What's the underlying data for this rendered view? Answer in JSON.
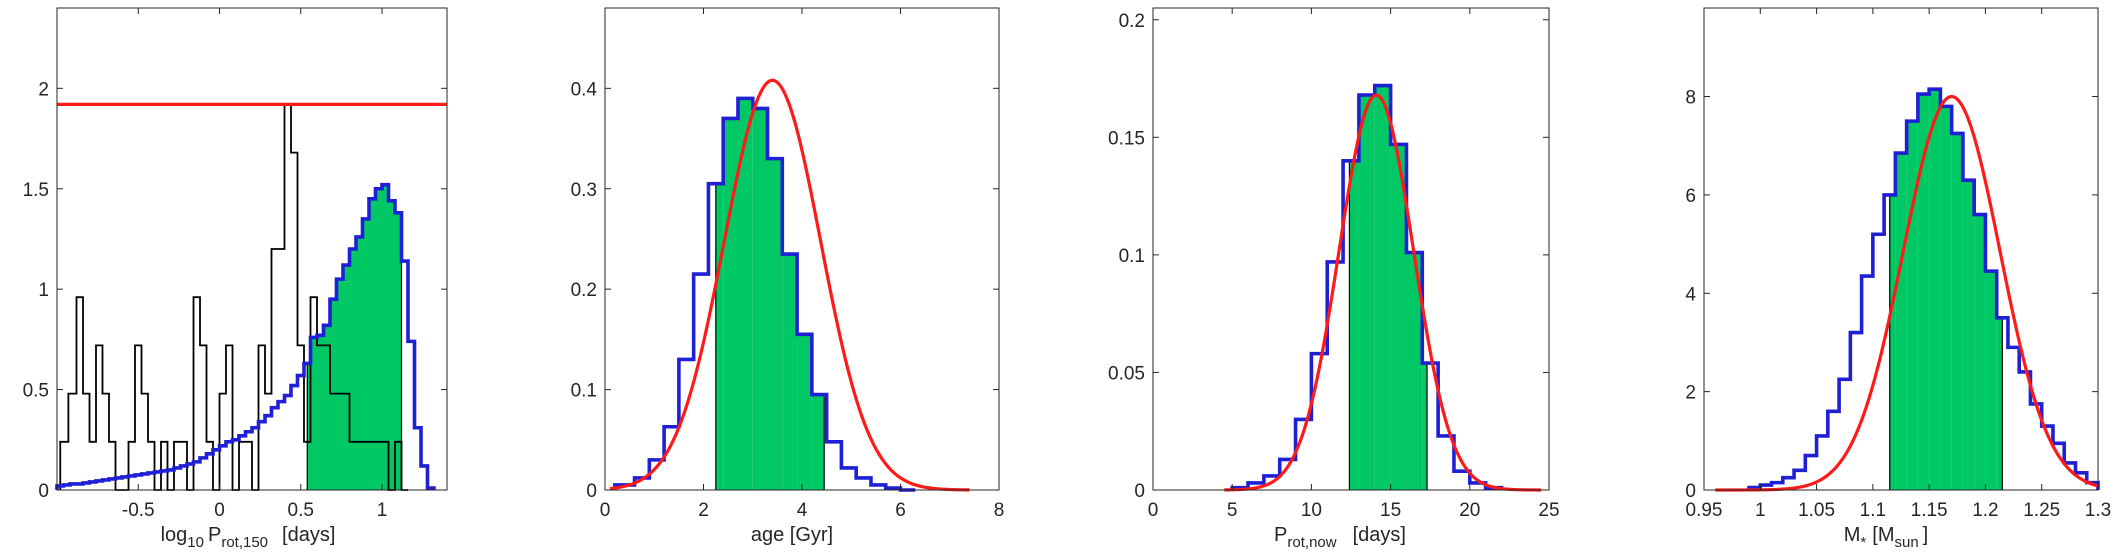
{
  "chart_data": [
    {
      "id": "p1",
      "type": "histogram",
      "xlabel": {
        "main": "log",
        "sub1": "10",
        "mid": "P",
        "sub2": "rot,150",
        "unit": "[days]"
      },
      "xlim": [
        -1.0,
        1.4
      ],
      "ylim": [
        0,
        2.4
      ],
      "xticks": [
        -0.5,
        0,
        0.5,
        1
      ],
      "xtick_labels": [
        "-0.5",
        "0",
        "0.5",
        "1"
      ],
      "yticks": [
        0,
        0.5,
        1,
        1.5,
        2
      ],
      "ytick_labels": [
        "0",
        "0.5",
        "1",
        "1.5",
        "2"
      ],
      "blue_hist": {
        "color": "#1f1fd6",
        "edges": [
          -1.0,
          -0.96,
          -0.92,
          -0.88,
          -0.84,
          -0.8,
          -0.76,
          -0.72,
          -0.68,
          -0.64,
          -0.6,
          -0.56,
          -0.52,
          -0.48,
          -0.44,
          -0.4,
          -0.36,
          -0.32,
          -0.28,
          -0.24,
          -0.2,
          -0.16,
          -0.12,
          -0.08,
          -0.04,
          0.0,
          0.04,
          0.08,
          0.12,
          0.16,
          0.2,
          0.24,
          0.28,
          0.32,
          0.36,
          0.4,
          0.44,
          0.48,
          0.52,
          0.56,
          0.6,
          0.64,
          0.68,
          0.72,
          0.76,
          0.8,
          0.84,
          0.88,
          0.92,
          0.96,
          1.0,
          1.04,
          1.08,
          1.12,
          1.16,
          1.2,
          1.24,
          1.28,
          1.32
        ],
        "values": [
          0.02,
          0.025,
          0.03,
          0.03,
          0.035,
          0.04,
          0.045,
          0.05,
          0.055,
          0.06,
          0.065,
          0.07,
          0.075,
          0.08,
          0.085,
          0.09,
          0.095,
          0.1,
          0.11,
          0.12,
          0.13,
          0.14,
          0.16,
          0.18,
          0.2,
          0.22,
          0.24,
          0.25,
          0.27,
          0.29,
          0.31,
          0.34,
          0.37,
          0.41,
          0.44,
          0.47,
          0.52,
          0.57,
          0.63,
          0.76,
          0.77,
          0.82,
          0.95,
          1.05,
          1.12,
          1.2,
          1.26,
          1.35,
          1.45,
          1.5,
          1.52,
          1.44,
          1.38,
          1.14,
          0.74,
          0.31,
          0.12,
          0.01
        ]
      },
      "green_fill": {
        "color": "#00c864",
        "x0": 0.54,
        "x1": 1.12
      },
      "black_hist": {
        "color": "#000000",
        "edges": [
          -0.98,
          -0.93,
          -0.88,
          -0.84,
          -0.8,
          -0.76,
          -0.72,
          -0.68,
          -0.64,
          -0.6,
          -0.56,
          -0.52,
          -0.48,
          -0.44,
          -0.4,
          -0.36,
          -0.32,
          -0.28,
          -0.24,
          -0.2,
          -0.16,
          -0.12,
          -0.08,
          -0.04,
          0.0,
          0.04,
          0.08,
          0.12,
          0.16,
          0.2,
          0.24,
          0.28,
          0.32,
          0.36,
          0.4,
          0.44,
          0.48,
          0.52,
          0.56,
          0.6,
          0.64,
          0.68,
          0.72,
          0.76,
          0.8,
          0.84,
          0.88,
          0.92,
          0.96,
          1.0,
          1.04,
          1.08,
          1.12,
          1.16
        ],
        "values": [
          0.24,
          0.48,
          0.96,
          0.48,
          0.24,
          0.72,
          0.48,
          0.24,
          0.0,
          0.0,
          0.24,
          0.72,
          0.48,
          0.24,
          0.0,
          0.24,
          0.0,
          0.24,
          0.24,
          0.0,
          0.96,
          0.72,
          0.24,
          0.0,
          0.48,
          0.72,
          0.0,
          0.24,
          0.24,
          0.0,
          0.72,
          0.48,
          1.2,
          1.2,
          1.92,
          1.68,
          0.72,
          0.24,
          0.96,
          0.72,
          0.72,
          0.48,
          0.48,
          0.48,
          0.24,
          0.24,
          0.24,
          0.24,
          0.24,
          0.24,
          0.0,
          0.24,
          0.0
        ]
      },
      "hline": {
        "y": 1.92,
        "color": "#ff1a1a"
      }
    },
    {
      "id": "p2",
      "type": "histogram",
      "xlabel": {
        "text": "age [Gyr]"
      },
      "xlim": [
        0,
        8
      ],
      "ylim": [
        0,
        0.48
      ],
      "xticks": [
        0,
        2,
        4,
        6,
        8
      ],
      "xtick_labels": [
        "0",
        "2",
        "4",
        "6",
        "8"
      ],
      "yticks": [
        0,
        0.1,
        0.2,
        0.3,
        0.4
      ],
      "ytick_labels": [
        "0",
        "0.1",
        "0.2",
        "0.3",
        "0.4"
      ],
      "blue_hist": {
        "color": "#1f1fd6",
        "edges": [
          0.2,
          0.6,
          0.9,
          1.2,
          1.5,
          1.8,
          2.1,
          2.4,
          2.7,
          3.0,
          3.3,
          3.6,
          3.9,
          4.2,
          4.5,
          4.8,
          5.1,
          5.4,
          5.7,
          6.0,
          6.3
        ],
        "values": [
          0.005,
          0.012,
          0.03,
          0.063,
          0.13,
          0.215,
          0.305,
          0.37,
          0.39,
          0.38,
          0.33,
          0.235,
          0.155,
          0.095,
          0.048,
          0.022,
          0.012,
          0.005,
          0.002,
          0.0
        ]
      },
      "green_fill": {
        "color": "#00c864",
        "x0": 2.25,
        "x1": 4.45
      },
      "curve": {
        "type": "gaussian",
        "amp": 0.408,
        "mu": 3.4,
        "sigma": 0.98,
        "x0": 0.1,
        "x1": 7.4,
        "color": "#ff1a1a"
      }
    },
    {
      "id": "p3",
      "type": "histogram",
      "xlabel": {
        "main": "P",
        "sub": "rot,now",
        "unit": "[days]"
      },
      "xlim": [
        0,
        25
      ],
      "ylim": [
        0,
        0.205
      ],
      "xticks": [
        0,
        5,
        10,
        15,
        20,
        25
      ],
      "xtick_labels": [
        "0",
        "5",
        "10",
        "15",
        "20",
        "25"
      ],
      "yticks": [
        0,
        0.05,
        0.1,
        0.15,
        0.2
      ],
      "ytick_labels": [
        "0",
        "0.05",
        "0.1",
        "0.15",
        "0.2"
      ],
      "blue_hist": {
        "color": "#1f1fd6",
        "edges": [
          5.0,
          6.0,
          7.0,
          8.0,
          9.0,
          10.0,
          11.0,
          12.0,
          13.0,
          14.0,
          15.0,
          16.0,
          17.0,
          18.0,
          19.0,
          20.0,
          21.0,
          22.0
        ],
        "values": [
          0.001,
          0.003,
          0.006,
          0.013,
          0.03,
          0.058,
          0.097,
          0.14,
          0.168,
          0.172,
          0.147,
          0.101,
          0.054,
          0.023,
          0.008,
          0.003,
          0.001
        ]
      },
      "green_fill": {
        "color": "#00c864",
        "x0": 12.4,
        "x1": 17.3
      },
      "curve": {
        "type": "gaussian",
        "amp": 0.168,
        "mu": 14.1,
        "sigma": 2.35,
        "x0": 4.5,
        "x1": 24.5,
        "color": "#ff1a1a"
      }
    },
    {
      "id": "p4",
      "type": "histogram",
      "xlabel": {
        "main": "M",
        "sub1": "*",
        "mid": "[M",
        "sub2": "sun",
        "unit": "]"
      },
      "xlim": [
        0.95,
        1.3
      ],
      "ylim": [
        0,
        9.8
      ],
      "xticks": [
        0.95,
        1.0,
        1.05,
        1.1,
        1.15,
        1.2,
        1.25,
        1.3
      ],
      "xtick_labels": [
        "0.95",
        "1",
        "1.05",
        "1.1",
        "1.15",
        "1.2",
        "1.25",
        "1.3"
      ],
      "yticks": [
        0,
        2,
        4,
        6,
        8
      ],
      "ytick_labels": [
        "0",
        "2",
        "4",
        "6",
        "8"
      ],
      "blue_hist": {
        "color": "#1f1fd6",
        "edges": [
          0.99,
          1.0,
          1.01,
          1.02,
          1.03,
          1.04,
          1.05,
          1.06,
          1.07,
          1.08,
          1.09,
          1.1,
          1.11,
          1.12,
          1.13,
          1.14,
          1.15,
          1.16,
          1.17,
          1.18,
          1.19,
          1.2,
          1.21,
          1.22,
          1.23,
          1.24,
          1.25,
          1.26,
          1.27,
          1.28,
          1.29,
          1.3
        ],
        "values": [
          0.05,
          0.1,
          0.15,
          0.25,
          0.4,
          0.7,
          1.1,
          1.6,
          2.25,
          3.2,
          4.35,
          5.2,
          6.0,
          6.85,
          7.5,
          8.05,
          8.15,
          7.8,
          7.25,
          6.3,
          5.6,
          4.45,
          3.5,
          2.9,
          2.4,
          1.75,
          1.3,
          0.95,
          0.55,
          0.35,
          0.15
        ]
      },
      "green_fill": {
        "color": "#00c864",
        "x0": 1.115,
        "x1": 1.215
      },
      "curve": {
        "type": "gaussian",
        "amp": 8.0,
        "mu": 1.17,
        "sigma": 0.043,
        "x0": 0.96,
        "x1": 1.3,
        "color": "#ff1a1a"
      }
    }
  ]
}
